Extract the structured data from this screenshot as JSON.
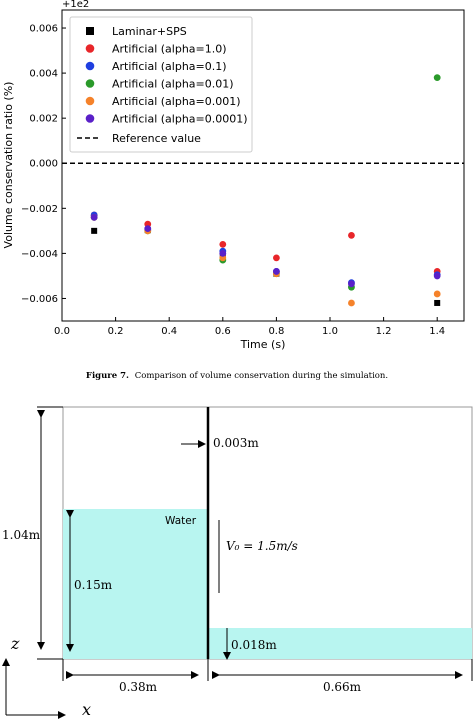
{
  "chart_data": {
    "type": "scatter",
    "offset_label": "+1e2",
    "ylabel": "Volume conservation ratio (%)",
    "xlabel": "Time (s)",
    "xlim": [
      0.0,
      1.5
    ],
    "ylim": [
      -0.007,
      0.0068
    ],
    "x_ticks": [
      "0.0",
      "0.2",
      "0.4",
      "0.6",
      "0.8",
      "1.0",
      "1.2",
      "1.4"
    ],
    "x_tick_values": [
      0.0,
      0.2,
      0.4,
      0.6,
      0.8,
      1.0,
      1.2,
      1.4
    ],
    "y_ticks": [
      "−0.006",
      "−0.004",
      "−0.002",
      "0.000",
      "0.002",
      "0.004",
      "0.006"
    ],
    "y_tick_values": [
      -0.006,
      -0.004,
      -0.002,
      0.0,
      0.002,
      0.004,
      0.006
    ],
    "legend_position": "top-left",
    "reference_value": 0.0,
    "reference_label": "Reference value",
    "series": [
      {
        "name": "Laminar+SPS",
        "marker": "square",
        "color": "#000000",
        "x": [
          0.12,
          0.32,
          0.6,
          0.8,
          1.08,
          1.4
        ],
        "y": [
          -0.003,
          -0.00297,
          -0.0041,
          -0.0049,
          -0.0054,
          -0.0062
        ]
      },
      {
        "name": "Artificial (alpha=1.0)",
        "marker": "circle",
        "color": "#e8262a",
        "x": [
          0.12,
          0.32,
          0.6,
          0.8,
          1.08,
          1.4
        ],
        "y": [
          -0.0023,
          -0.0027,
          -0.0036,
          -0.0042,
          -0.0032,
          -0.0048
        ]
      },
      {
        "name": "Artificial (alpha=0.1)",
        "marker": "circle",
        "color": "#1f3fe0",
        "x": [
          0.12,
          0.32,
          0.6,
          0.8,
          1.08,
          1.4
        ],
        "y": [
          -0.0023,
          -0.00295,
          -0.0039,
          -0.0048,
          -0.0053,
          -0.00495
        ]
      },
      {
        "name": "Artificial (alpha=0.01)",
        "marker": "circle",
        "color": "#2a9a2a",
        "x": [
          0.12,
          0.32,
          0.6,
          0.8,
          1.08,
          1.4
        ],
        "y": [
          -0.0024,
          -0.003,
          -0.0043,
          -0.0049,
          -0.0055,
          0.0038
        ]
      },
      {
        "name": "Artificial (alpha=0.001)",
        "marker": "circle",
        "color": "#f5822a",
        "x": [
          0.12,
          0.32,
          0.6,
          0.8,
          1.08,
          1.4
        ],
        "y": [
          -0.0024,
          -0.003,
          -0.0042,
          -0.0049,
          -0.0062,
          -0.0058
        ]
      },
      {
        "name": "Artificial (alpha=0.0001)",
        "marker": "circle",
        "color": "#5a20c8",
        "x": [
          0.12,
          0.32,
          0.6,
          0.8,
          1.08,
          1.4
        ],
        "y": [
          -0.0024,
          -0.0029,
          -0.004,
          -0.0048,
          -0.00535,
          -0.005
        ]
      }
    ]
  },
  "caption": {
    "label": "Figure 7.",
    "text": "Comparison of volume conservation during the simulation."
  },
  "diagram": {
    "water_label": "Water",
    "height_label": "1.04m",
    "wall_thickness_label": "0.003m",
    "left_water_height_label": "0.15m",
    "right_water_height_label": "0.018m",
    "left_width_label": "0.38m",
    "right_width_label": "0.66m",
    "velocity_label": "V₀ = 1.5m/s",
    "axis_z_label": "z",
    "axis_x_label": "x",
    "water_color": "#b8f5f0"
  }
}
